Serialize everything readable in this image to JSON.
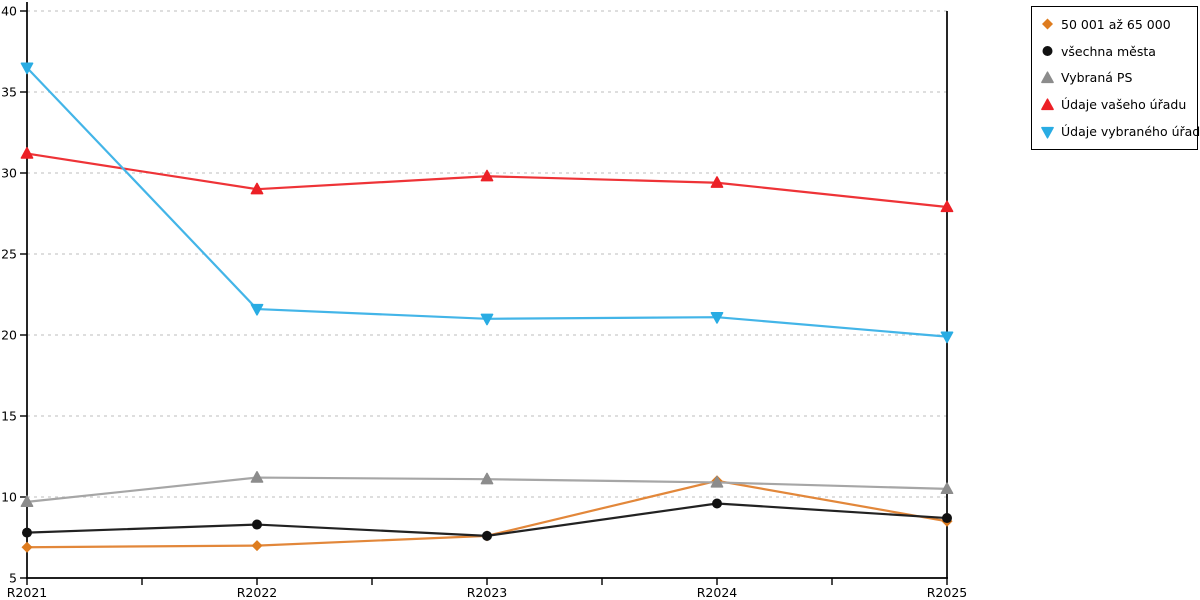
{
  "page": {
    "background": "#ffffff",
    "axis_color": "#000000",
    "grid_color": "#c9c9c9"
  },
  "chart_data": {
    "type": "line",
    "title": "",
    "xlabel": "",
    "ylabel": "",
    "categories": [
      "R2021",
      "R2022",
      "R2023",
      "R2024",
      "R2025"
    ],
    "ylim": [
      5,
      40
    ],
    "y_ticks": [
      5,
      10,
      15,
      20,
      25,
      30,
      35,
      40
    ],
    "grid": "horizontal-dashed",
    "legend_position": "outside-top-right",
    "series": [
      {
        "name": "50 001 až 65 000",
        "marker": "diamond",
        "marker_color": "#de7c1f",
        "line_color": "#e2873a",
        "values": [
          6.9,
          7.0,
          7.6,
          11.0,
          8.5
        ]
      },
      {
        "name": "všechna města",
        "marker": "circle",
        "marker_color": "#111111",
        "line_color": "#222222",
        "values": [
          7.8,
          8.3,
          7.6,
          9.6,
          8.7
        ]
      },
      {
        "name": "Vybraná PS",
        "marker": "triangle-up",
        "marker_color": "#8c8c8c",
        "line_color": "#a6a6a6",
        "values": [
          9.7,
          11.2,
          11.1,
          10.9,
          10.5
        ]
      },
      {
        "name": "Údaje vašeho úřadu",
        "marker": "triangle-up",
        "marker_color": "#ec2026",
        "line_color": "#ee3337",
        "values": [
          31.2,
          29.0,
          29.8,
          29.4,
          27.9
        ]
      },
      {
        "name": "Údaje vybraného úřadu",
        "marker": "triangle-down",
        "marker_color": "#29ace3",
        "line_color": "#43b5e8",
        "values": [
          36.5,
          21.6,
          21.0,
          21.1,
          19.9
        ]
      }
    ]
  }
}
